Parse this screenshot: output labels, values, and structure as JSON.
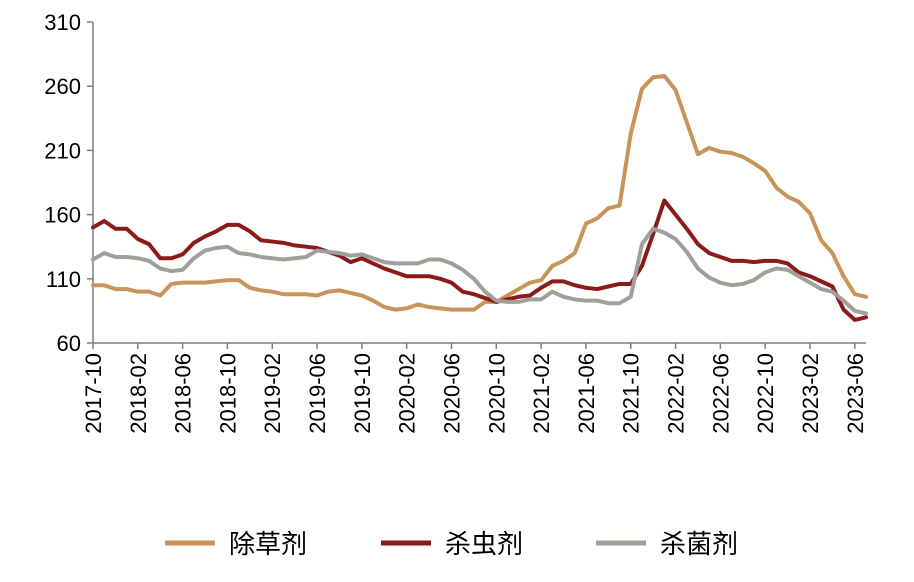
{
  "chart_data": {
    "type": "line",
    "title": "",
    "xlabel": "",
    "ylabel": "",
    "ylim": [
      60,
      310
    ],
    "yticks": [
      60,
      110,
      160,
      210,
      260,
      310
    ],
    "x_tick_labels": [
      "2017-10",
      "2018-02",
      "2018-06",
      "2018-10",
      "2019-02",
      "2019-06",
      "2019-10",
      "2020-02",
      "2020-06",
      "2020-10",
      "2021-02",
      "2021-06",
      "2021-10",
      "2022-02",
      "2022-06",
      "2022-10",
      "2023-02",
      "2023-06"
    ],
    "x": [
      "2017-10",
      "2017-11",
      "2017-12",
      "2018-01",
      "2018-02",
      "2018-03",
      "2018-04",
      "2018-05",
      "2018-06",
      "2018-07",
      "2018-08",
      "2018-09",
      "2018-10",
      "2018-11",
      "2018-12",
      "2019-01",
      "2019-02",
      "2019-03",
      "2019-04",
      "2019-05",
      "2019-06",
      "2019-07",
      "2019-08",
      "2019-09",
      "2019-10",
      "2019-11",
      "2019-12",
      "2020-01",
      "2020-02",
      "2020-03",
      "2020-04",
      "2020-05",
      "2020-06",
      "2020-07",
      "2020-08",
      "2020-09",
      "2020-10",
      "2020-11",
      "2020-12",
      "2021-01",
      "2021-02",
      "2021-03",
      "2021-04",
      "2021-05",
      "2021-06",
      "2021-07",
      "2021-08",
      "2021-09",
      "2021-10",
      "2021-11",
      "2021-12",
      "2022-01",
      "2022-02",
      "2022-03",
      "2022-04",
      "2022-05",
      "2022-06",
      "2022-07",
      "2022-08",
      "2022-09",
      "2022-10",
      "2022-11",
      "2022-12",
      "2023-01",
      "2023-02",
      "2023-03",
      "2023-04",
      "2023-05",
      "2023-06",
      "2023-07"
    ],
    "grid": false,
    "legend_position": "bottom",
    "series": [
      {
        "name": "除草剂",
        "color": "#C8945A",
        "values": [
          105,
          105,
          102,
          102,
          100,
          100,
          97,
          106,
          107,
          107,
          107,
          108,
          109,
          109,
          103,
          101,
          100,
          98,
          98,
          98,
          97,
          100,
          101,
          99,
          97,
          93,
          88,
          86,
          87,
          90,
          88,
          87,
          86,
          86,
          86,
          92,
          92,
          97,
          102,
          107,
          109,
          120,
          124,
          130,
          153,
          157,
          165,
          167,
          223,
          258,
          267,
          268,
          257,
          232,
          207,
          212,
          209,
          208,
          205,
          200,
          194,
          181,
          174,
          170,
          161,
          140,
          130,
          112,
          98,
          96
        ]
      },
      {
        "name": "杀虫剂",
        "color": "#8B1A1A",
        "values": [
          150,
          155,
          149,
          149,
          141,
          137,
          126,
          126,
          129,
          138,
          143,
          147,
          152,
          152,
          147,
          140,
          139,
          138,
          136,
          135,
          134,
          131,
          128,
          123,
          126,
          122,
          118,
          115,
          112,
          112,
          112,
          110,
          107,
          100,
          98,
          95,
          92,
          94,
          96,
          97,
          103,
          108,
          108,
          105,
          103,
          102,
          104,
          106,
          106,
          120,
          145,
          171,
          160,
          149,
          137,
          130,
          127,
          124,
          124,
          123,
          124,
          124,
          122,
          115,
          112,
          108,
          104,
          86,
          78,
          80
        ]
      },
      {
        "name": "杀菌剂",
        "color": "#A0A09A",
        "values": [
          125,
          130,
          127,
          127,
          126,
          124,
          118,
          116,
          117,
          126,
          132,
          134,
          135,
          130,
          129,
          127,
          126,
          125,
          126,
          127,
          132,
          131,
          130,
          128,
          129,
          126,
          123,
          122,
          122,
          122,
          125,
          125,
          122,
          117,
          110,
          100,
          93,
          92,
          92,
          94,
          94,
          100,
          96,
          94,
          93,
          93,
          91,
          91,
          96,
          137,
          149,
          146,
          141,
          131,
          118,
          111,
          107,
          105,
          106,
          109,
          115,
          118,
          117,
          112,
          107,
          102,
          100,
          93,
          85,
          83
        ]
      }
    ]
  }
}
